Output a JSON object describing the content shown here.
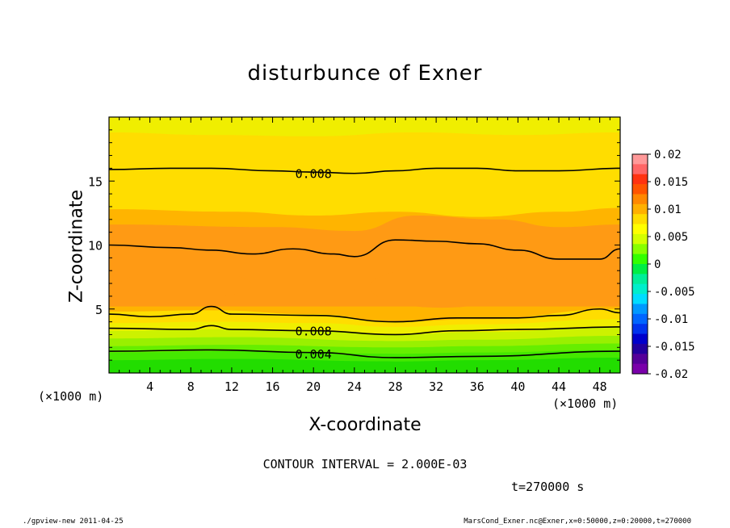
{
  "chart_data": {
    "type": "contour",
    "title": "disturbunce of Exner",
    "xlabel": "X-coordinate",
    "ylabel": "Z-coordinate",
    "x_unit_label": "(×1000 m)",
    "x_unit_label_right": "(×1000 m)",
    "xlim": [
      0,
      50
    ],
    "ylim": [
      0,
      20
    ],
    "x_ticks": [
      4,
      8,
      12,
      16,
      20,
      24,
      28,
      32,
      36,
      40,
      44,
      48
    ],
    "y_ticks": [
      5,
      10,
      15
    ],
    "contour_interval_text": "CONTOUR INTERVAL = 2.000E-03",
    "time_text": "t=270000 s",
    "contour_labels": [
      {
        "value": "0.008",
        "x": 20,
        "z": 15.6
      },
      {
        "value": "0.008",
        "x": 20,
        "z": 3.3
      },
      {
        "value": "0.004",
        "x": 20,
        "z": 1.5
      }
    ],
    "bands": [
      {
        "level_min": 0.0,
        "color": "#22dd00",
        "profile": [
          [
            0,
            0.0
          ],
          [
            50,
            0.0
          ]
        ]
      },
      {
        "level_min": 0.001,
        "color": "#44e800",
        "profile": [
          [
            0,
            1.0
          ],
          [
            12,
            1.1
          ],
          [
            28,
            0.9
          ],
          [
            36,
            1.0
          ],
          [
            50,
            1.2
          ]
        ]
      },
      {
        "level_min": 0.002,
        "color": "#66ee00",
        "profile": [
          [
            0,
            1.6
          ],
          [
            12,
            1.7
          ],
          [
            28,
            1.5
          ],
          [
            36,
            1.6
          ],
          [
            50,
            1.8
          ]
        ]
      },
      {
        "level_min": 0.003,
        "color": "#99f000",
        "profile": [
          [
            0,
            2.1
          ],
          [
            12,
            2.2
          ],
          [
            28,
            2.0
          ],
          [
            36,
            2.1
          ],
          [
            50,
            2.3
          ]
        ]
      },
      {
        "level_min": 0.004,
        "color": "#ccf200",
        "profile": [
          [
            0,
            2.7
          ],
          [
            12,
            2.8
          ],
          [
            28,
            2.5
          ],
          [
            36,
            2.6
          ],
          [
            50,
            2.9
          ]
        ]
      },
      {
        "level_min": 0.005,
        "color": "#f0ee00",
        "profile": [
          [
            0,
            3.3
          ],
          [
            10,
            3.4
          ],
          [
            20,
            3.3
          ],
          [
            28,
            3.0
          ],
          [
            36,
            3.2
          ],
          [
            50,
            3.6
          ]
        ]
      },
      {
        "level_min": 0.007,
        "color": "#ffdd00",
        "profile": [
          [
            0,
            3.9
          ],
          [
            10,
            4.0
          ],
          [
            20,
            3.9
          ],
          [
            28,
            3.6
          ],
          [
            36,
            3.8
          ],
          [
            50,
            4.2
          ]
        ]
      },
      {
        "level_min": 0.009,
        "color": "#ffb400",
        "profile": [
          [
            0,
            4.8
          ],
          [
            10,
            4.9
          ],
          [
            20,
            4.6
          ],
          [
            28,
            4.0
          ],
          [
            36,
            4.2
          ],
          [
            50,
            5.0
          ]
        ]
      },
      {
        "level_min": 0.011,
        "color": "#ff9a14",
        "profile": [
          [
            0,
            5.2
          ],
          [
            50,
            5.2
          ]
        ]
      },
      {
        "level_min": 0.009,
        "color": "#ffb400",
        "profile": [
          [
            0,
            11.6
          ],
          [
            16,
            11.4
          ],
          [
            24,
            11.1
          ],
          [
            30,
            12.3
          ],
          [
            38,
            12.0
          ],
          [
            44,
            11.4
          ],
          [
            50,
            11.6
          ]
        ]
      },
      {
        "level_min": 0.007,
        "color": "#ffdd00",
        "profile": [
          [
            0,
            12.8
          ],
          [
            12,
            12.6
          ],
          [
            20,
            12.3
          ],
          [
            28,
            12.6
          ],
          [
            36,
            12.2
          ],
          [
            44,
            12.6
          ],
          [
            50,
            12.9
          ]
        ]
      },
      {
        "level_min": 0.005,
        "color": "#f0ee00",
        "profile": [
          [
            0,
            18.8
          ],
          [
            10,
            18.6
          ],
          [
            20,
            18.5
          ],
          [
            30,
            18.8
          ],
          [
            40,
            18.6
          ],
          [
            50,
            18.8
          ]
        ]
      },
      {
        "level_min": 0.004,
        "color": "#e8f000",
        "profile": [
          [
            0,
            20.0
          ],
          [
            50,
            20.0
          ]
        ]
      }
    ],
    "max_blobs": [
      {
        "color": "#ff9a14",
        "x": 7.5,
        "z": 6.9,
        "rx": 6.5,
        "rz": 1.1
      },
      {
        "color": "#ff9a14",
        "x": 21.5,
        "z": 6.7,
        "rx": 2.7,
        "rz": 0.6
      },
      {
        "color": "#ff9a14",
        "x": 32.5,
        "z": 6.7,
        "rx": 7.0,
        "rz": 1.6
      }
    ],
    "contour_lines": [
      [
        [
          0,
          15.9
        ],
        [
          6,
          16.0
        ],
        [
          10,
          16.0
        ],
        [
          16,
          15.8
        ],
        [
          20,
          15.7
        ],
        [
          24,
          15.6
        ],
        [
          28,
          15.8
        ],
        [
          32,
          16.0
        ],
        [
          36,
          16.0
        ],
        [
          40,
          15.8
        ],
        [
          44,
          15.8
        ],
        [
          50,
          16.0
        ]
      ],
      [
        [
          0,
          10.0
        ],
        [
          6,
          9.8
        ],
        [
          10,
          9.6
        ],
        [
          14,
          9.3
        ],
        [
          18,
          9.7
        ],
        [
          22,
          9.3
        ],
        [
          24,
          9.1
        ],
        [
          28,
          10.4
        ],
        [
          32,
          10.3
        ],
        [
          36,
          10.1
        ],
        [
          40,
          9.6
        ],
        [
          44,
          8.9
        ],
        [
          48,
          8.9
        ],
        [
          50,
          9.7
        ]
      ],
      [
        [
          0,
          4.6
        ],
        [
          4,
          4.4
        ],
        [
          8,
          4.6
        ],
        [
          10,
          5.2
        ],
        [
          12,
          4.6
        ],
        [
          20,
          4.5
        ],
        [
          28,
          4.0
        ],
        [
          34,
          4.3
        ],
        [
          40,
          4.3
        ],
        [
          44,
          4.5
        ],
        [
          48,
          5.0
        ],
        [
          50,
          4.7
        ]
      ],
      [
        [
          0,
          3.5
        ],
        [
          8,
          3.4
        ],
        [
          10,
          3.7
        ],
        [
          12,
          3.4
        ],
        [
          20,
          3.3
        ],
        [
          28,
          3.0
        ],
        [
          34,
          3.3
        ],
        [
          40,
          3.4
        ],
        [
          50,
          3.6
        ]
      ],
      [
        [
          0,
          1.7
        ],
        [
          10,
          1.8
        ],
        [
          20,
          1.6
        ],
        [
          28,
          1.2
        ],
        [
          36,
          1.3
        ],
        [
          50,
          1.7
        ]
      ]
    ],
    "colorbar": {
      "labels": [
        "0.02",
        "0.015",
        "0.01",
        "0.005",
        "0",
        "-0.005",
        "-0.01",
        "-0.015",
        "-0.02"
      ],
      "colors": [
        "#ff9999",
        "#ff6666",
        "#ff3311",
        "#ff5500",
        "#ff8800",
        "#ffb000",
        "#ffdd00",
        "#ffff00",
        "#d4ff00",
        "#88ff00",
        "#33ff00",
        "#00ee44",
        "#00ee99",
        "#00eecc",
        "#00ddff",
        "#0099ff",
        "#0066ff",
        "#0033ee",
        "#0000cc",
        "#22009e",
        "#550099",
        "#7a00aa"
      ]
    }
  },
  "footer": {
    "left": "./gpview-new  2011-04-25",
    "right": "MarsCond_Exner.nc@Exner,x=0:50000,z=0:20000,t=270000"
  }
}
